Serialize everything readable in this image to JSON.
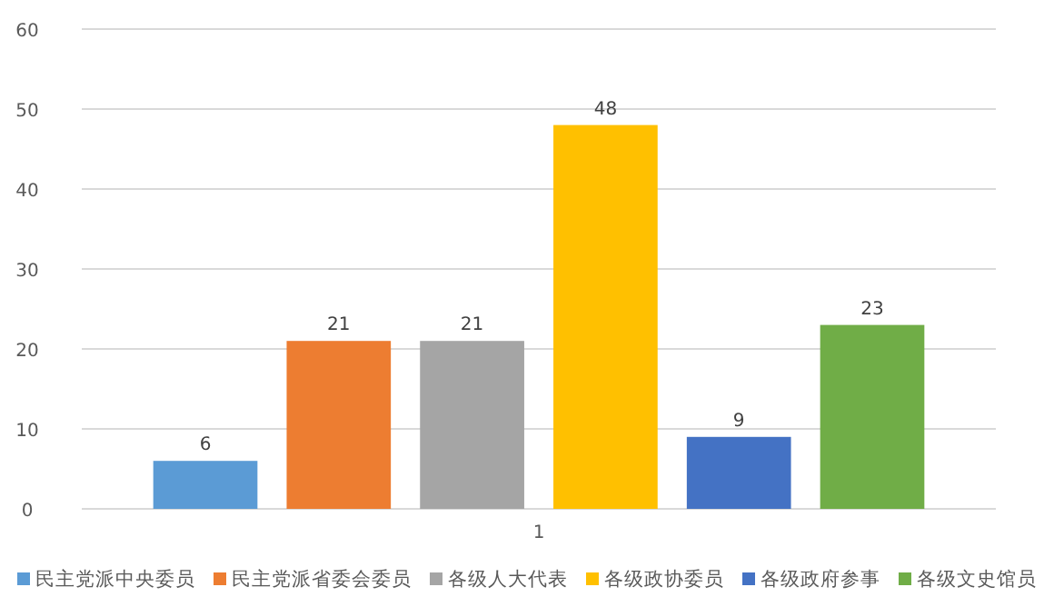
{
  "chart_data": {
    "type": "bar",
    "categories": [
      "1"
    ],
    "series": [
      {
        "name": "民主党派中央委员",
        "color": "#5b9bd5",
        "values": [
          6
        ]
      },
      {
        "name": "民主党派省委会委员",
        "color": "#ed7d31",
        "values": [
          21
        ]
      },
      {
        "name": "各级人大代表",
        "color": "#a5a5a5",
        "values": [
          21
        ]
      },
      {
        "name": "各级政协委员",
        "color": "#ffc000",
        "values": [
          48
        ]
      },
      {
        "name": "各级政府参事",
        "color": "#4472c4",
        "values": [
          9
        ]
      },
      {
        "name": "各级文史馆员",
        "color": "#70ad47",
        "values": [
          23
        ]
      }
    ],
    "ylim": [
      0,
      60
    ],
    "yticks": [
      0,
      10,
      20,
      30,
      40,
      50,
      60
    ],
    "grid": "y",
    "legend": "bottom",
    "data_labels": true
  }
}
